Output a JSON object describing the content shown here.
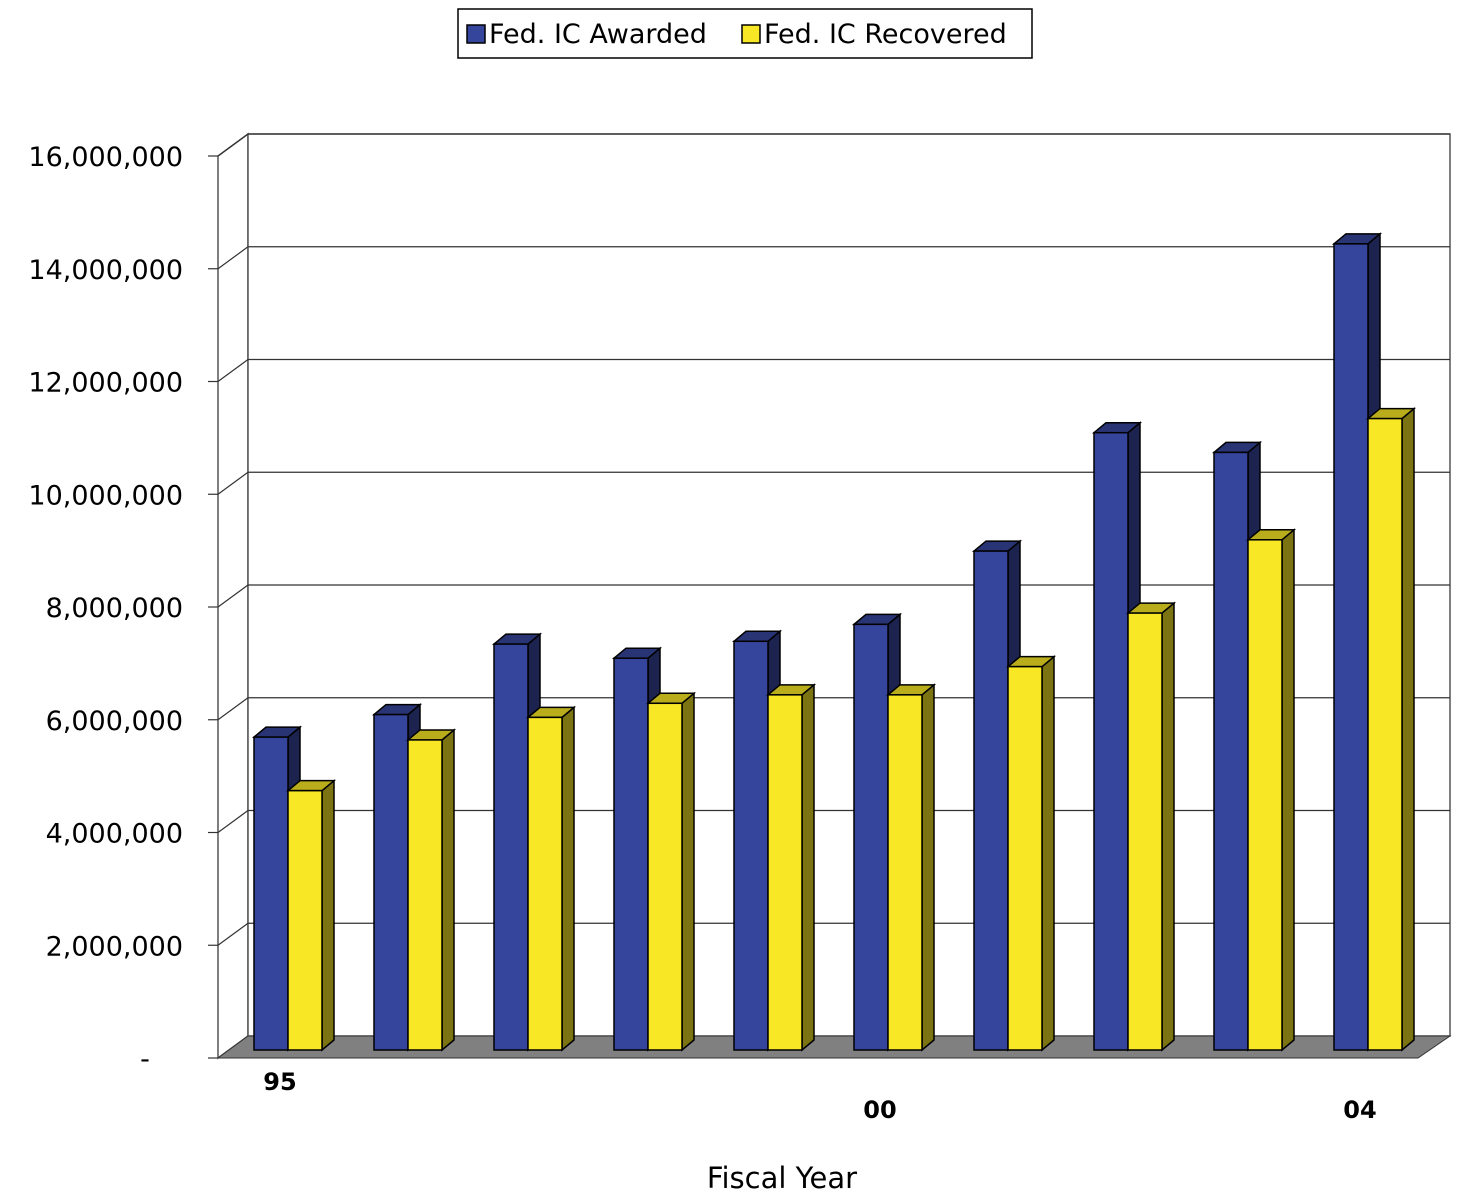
{
  "chart_data": {
    "type": "bar",
    "title": "",
    "xlabel": "Fiscal Year",
    "ylabel": "",
    "ylim": [
      0,
      16000000
    ],
    "yticks": [
      0,
      2000000,
      4000000,
      6000000,
      8000000,
      10000000,
      12000000,
      14000000,
      16000000
    ],
    "ytick_labels": [
      "-",
      "2,000,000",
      "4,000,000",
      "6,000,000",
      "8,000,000",
      "10,000,000",
      "12,000,000",
      "14,000,000",
      "16,000,000"
    ],
    "categories": [
      "95",
      "",
      "",
      "",
      "",
      "00",
      "",
      "",
      "",
      "04"
    ],
    "grid": true,
    "legend_position": "top-center",
    "series": [
      {
        "name": "Fed. IC Awarded",
        "color": "#36459C",
        "values": [
          5550000,
          5950000,
          7200000,
          6950000,
          7250000,
          7550000,
          8850000,
          10950000,
          10600000,
          14300000
        ]
      },
      {
        "name": "Fed. IC Recovered",
        "color": "#F7E724",
        "values": [
          4600000,
          5500000,
          5900000,
          6150000,
          6300000,
          6300000,
          6800000,
          7750000,
          9050000,
          11200000
        ]
      }
    ]
  }
}
